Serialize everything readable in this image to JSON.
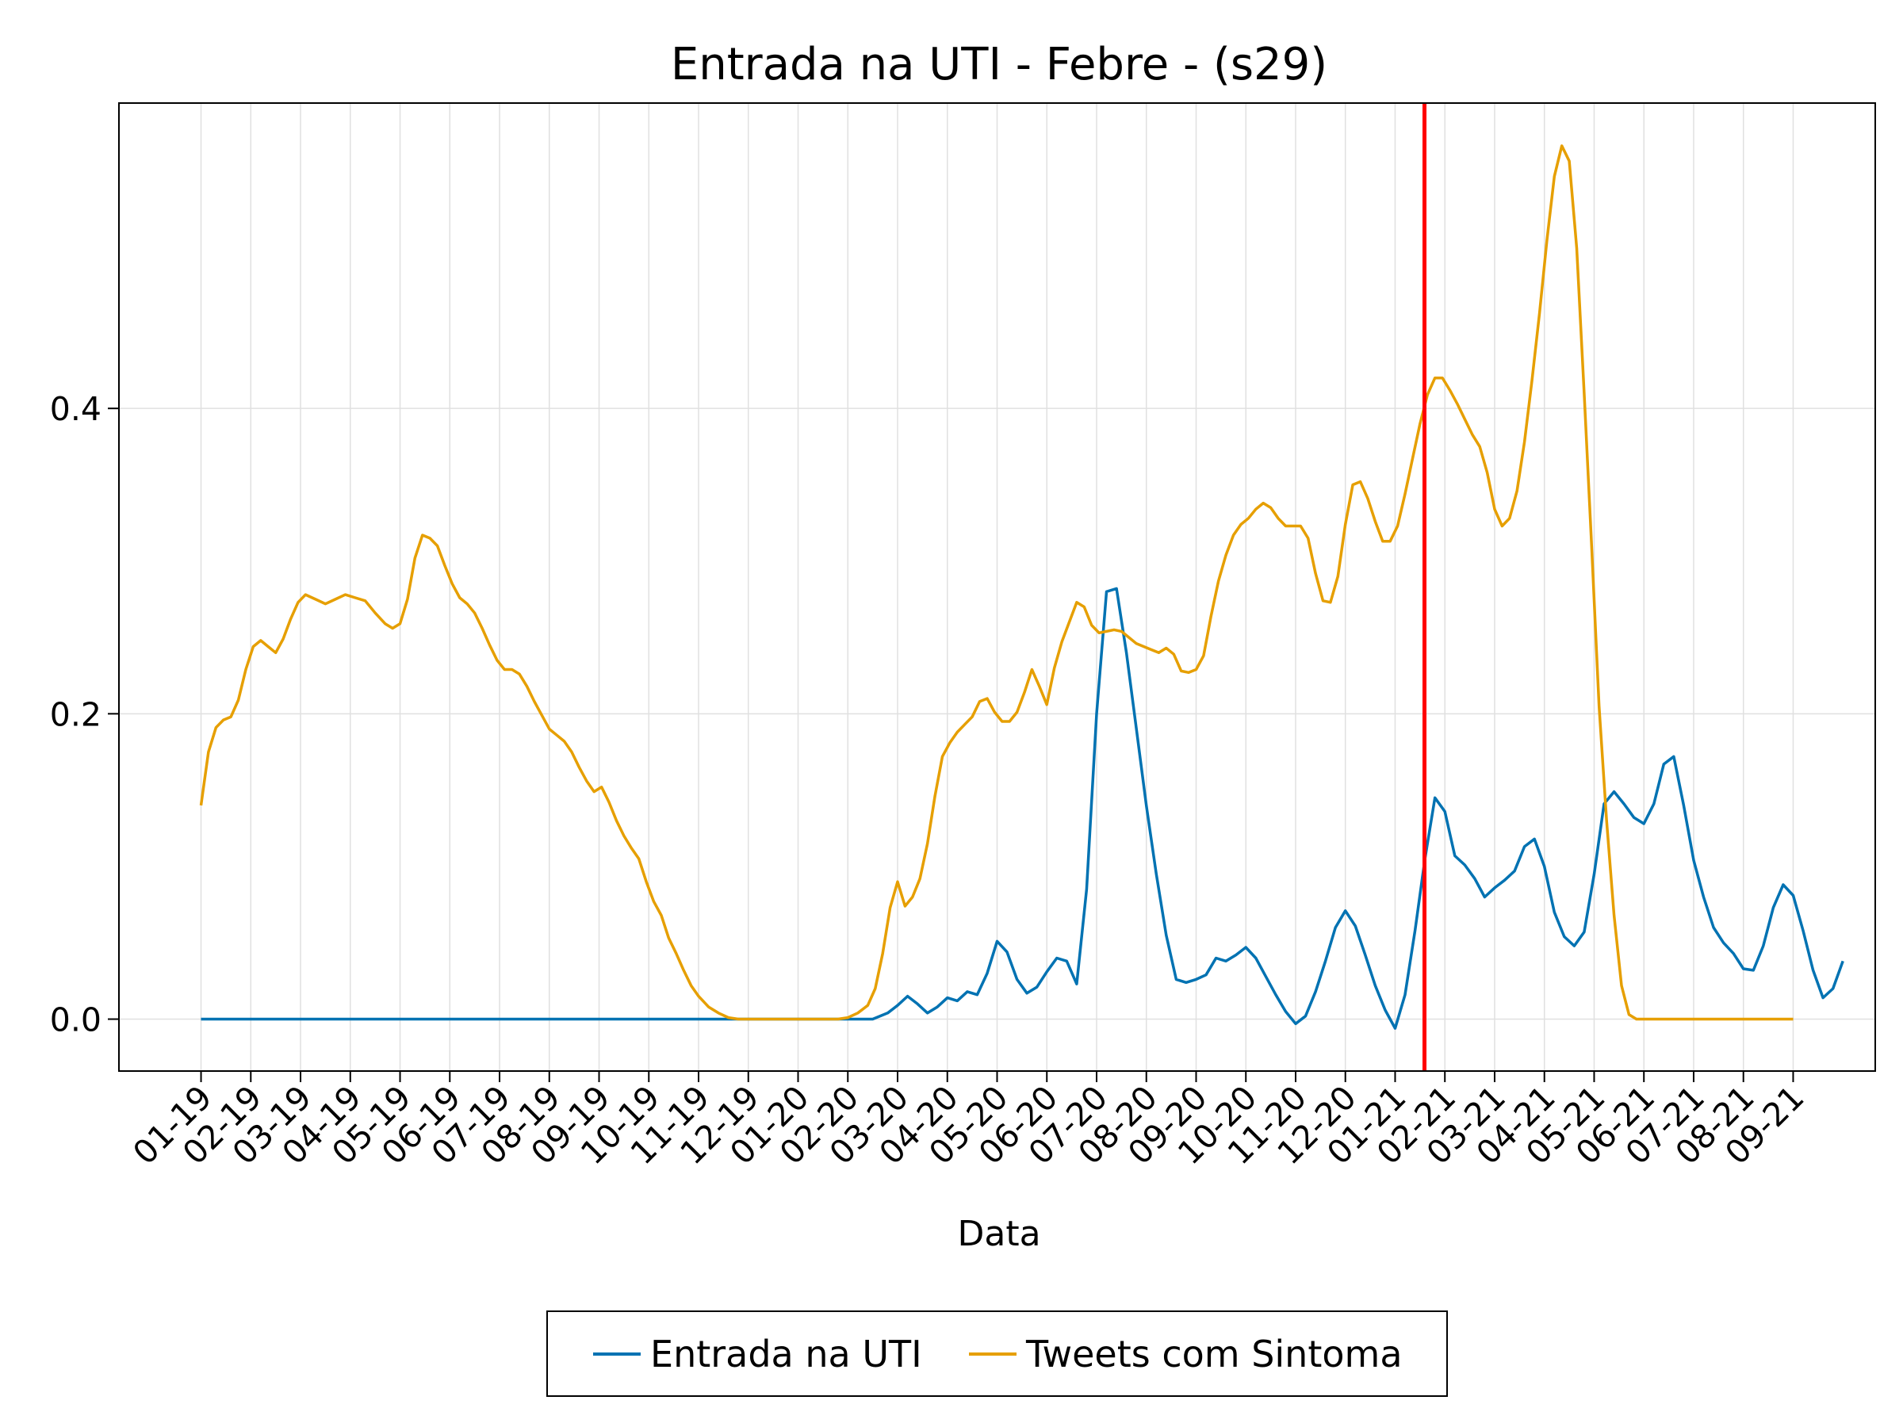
{
  "chart_data": {
    "type": "line",
    "title": "Entrada na UTI - Febre - (s29)",
    "xlabel": "Data",
    "ylabel": "",
    "x_ticks": [
      "01-19",
      "02-19",
      "03-19",
      "04-19",
      "05-19",
      "06-19",
      "07-19",
      "08-19",
      "09-19",
      "10-19",
      "11-19",
      "12-19",
      "01-20",
      "02-20",
      "03-20",
      "04-20",
      "05-20",
      "06-20",
      "07-20",
      "08-20",
      "09-20",
      "10-20",
      "11-20",
      "12-20",
      "01-21",
      "02-21",
      "03-21",
      "04-21",
      "05-21",
      "06-21",
      "07-21",
      "08-21",
      "09-21"
    ],
    "y_ticks": [
      "0.0",
      "0.2",
      "0.4"
    ],
    "ylim": [
      -0.034,
      0.6
    ],
    "xlim": [
      -1.65,
      33.65
    ],
    "grid": true,
    "legend_position": "bottom",
    "vline": {
      "x": 24.59,
      "color": "#ff0000"
    },
    "series": [
      {
        "name": "Entrada na UTI",
        "color": "#0072b2",
        "points": [
          [
            0,
            0
          ],
          [
            1,
            0
          ],
          [
            2,
            0
          ],
          [
            3,
            0
          ],
          [
            4,
            0
          ],
          [
            5,
            0
          ],
          [
            6,
            0
          ],
          [
            7,
            0
          ],
          [
            8,
            0
          ],
          [
            9,
            0
          ],
          [
            10,
            0
          ],
          [
            11,
            0
          ],
          [
            12,
            0
          ],
          [
            13,
            0
          ],
          [
            13.5,
            0
          ],
          [
            13.8,
            0.004
          ],
          [
            14.0,
            0.009
          ],
          [
            14.2,
            0.015
          ],
          [
            14.4,
            0.01
          ],
          [
            14.6,
            0.004
          ],
          [
            14.8,
            0.008
          ],
          [
            15.0,
            0.014
          ],
          [
            15.2,
            0.012
          ],
          [
            15.4,
            0.018
          ],
          [
            15.6,
            0.016
          ],
          [
            15.8,
            0.03
          ],
          [
            16.0,
            0.051
          ],
          [
            16.2,
            0.044
          ],
          [
            16.4,
            0.026
          ],
          [
            16.6,
            0.017
          ],
          [
            16.8,
            0.021
          ],
          [
            17.0,
            0.031
          ],
          [
            17.2,
            0.04
          ],
          [
            17.4,
            0.038
          ],
          [
            17.6,
            0.023
          ],
          [
            17.8,
            0.085
          ],
          [
            18.0,
            0.2
          ],
          [
            18.2,
            0.28
          ],
          [
            18.4,
            0.282
          ],
          [
            18.6,
            0.24
          ],
          [
            18.8,
            0.19
          ],
          [
            19.0,
            0.14
          ],
          [
            19.2,
            0.095
          ],
          [
            19.4,
            0.055
          ],
          [
            19.6,
            0.026
          ],
          [
            19.8,
            0.024
          ],
          [
            20.0,
            0.026
          ],
          [
            20.2,
            0.029
          ],
          [
            20.4,
            0.04
          ],
          [
            20.6,
            0.038
          ],
          [
            20.8,
            0.042
          ],
          [
            21.0,
            0.047
          ],
          [
            21.2,
            0.04
          ],
          [
            21.4,
            0.028
          ],
          [
            21.6,
            0.016
          ],
          [
            21.8,
            0.005
          ],
          [
            22.0,
            -0.003
          ],
          [
            22.2,
            0.002
          ],
          [
            22.4,
            0.018
          ],
          [
            22.6,
            0.038
          ],
          [
            22.8,
            0.06
          ],
          [
            23.0,
            0.071
          ],
          [
            23.2,
            0.061
          ],
          [
            23.4,
            0.042
          ],
          [
            23.6,
            0.022
          ],
          [
            23.8,
            0.006
          ],
          [
            24.0,
            -0.006
          ],
          [
            24.2,
            0.016
          ],
          [
            24.4,
            0.058
          ],
          [
            24.6,
            0.105
          ],
          [
            24.8,
            0.145
          ],
          [
            25.0,
            0.136
          ],
          [
            25.2,
            0.107
          ],
          [
            25.4,
            0.101
          ],
          [
            25.6,
            0.092
          ],
          [
            25.8,
            0.08
          ],
          [
            26.0,
            0.086
          ],
          [
            26.2,
            0.091
          ],
          [
            26.4,
            0.097
          ],
          [
            26.6,
            0.113
          ],
          [
            26.8,
            0.118
          ],
          [
            27.0,
            0.1
          ],
          [
            27.2,
            0.07
          ],
          [
            27.4,
            0.054
          ],
          [
            27.6,
            0.048
          ],
          [
            27.8,
            0.057
          ],
          [
            28.0,
            0.095
          ],
          [
            28.2,
            0.141
          ],
          [
            28.4,
            0.149
          ],
          [
            28.6,
            0.141
          ],
          [
            28.8,
            0.132
          ],
          [
            29.0,
            0.128
          ],
          [
            29.2,
            0.141
          ],
          [
            29.4,
            0.167
          ],
          [
            29.6,
            0.172
          ],
          [
            29.8,
            0.14
          ],
          [
            30.0,
            0.104
          ],
          [
            30.2,
            0.08
          ],
          [
            30.4,
            0.06
          ],
          [
            30.6,
            0.05
          ],
          [
            30.8,
            0.043
          ],
          [
            31.0,
            0.033
          ],
          [
            31.2,
            0.032
          ],
          [
            31.4,
            0.048
          ],
          [
            31.6,
            0.073
          ],
          [
            31.8,
            0.088
          ],
          [
            32.0,
            0.081
          ],
          [
            32.2,
            0.058
          ],
          [
            32.4,
            0.032
          ],
          [
            32.6,
            0.014
          ],
          [
            32.8,
            0.02
          ],
          [
            33.0,
            0.038
          ]
        ]
      },
      {
        "name": "Tweets com Sintoma",
        "color": "#e69f00",
        "points": [
          [
            0,
            0.14
          ],
          [
            0.15,
            0.175
          ],
          [
            0.3,
            0.191
          ],
          [
            0.45,
            0.196
          ],
          [
            0.6,
            0.198
          ],
          [
            0.75,
            0.209
          ],
          [
            0.9,
            0.229
          ],
          [
            1.05,
            0.244
          ],
          [
            1.2,
            0.248
          ],
          [
            1.35,
            0.244
          ],
          [
            1.5,
            0.24
          ],
          [
            1.65,
            0.249
          ],
          [
            1.8,
            0.262
          ],
          [
            1.95,
            0.273
          ],
          [
            2.1,
            0.278
          ],
          [
            2.3,
            0.275
          ],
          [
            2.5,
            0.272
          ],
          [
            2.7,
            0.275
          ],
          [
            2.9,
            0.278
          ],
          [
            3.1,
            0.276
          ],
          [
            3.3,
            0.274
          ],
          [
            3.5,
            0.266
          ],
          [
            3.7,
            0.259
          ],
          [
            3.85,
            0.256
          ],
          [
            4.0,
            0.259
          ],
          [
            4.15,
            0.275
          ],
          [
            4.3,
            0.302
          ],
          [
            4.45,
            0.317
          ],
          [
            4.6,
            0.315
          ],
          [
            4.75,
            0.31
          ],
          [
            4.9,
            0.297
          ],
          [
            5.05,
            0.285
          ],
          [
            5.2,
            0.276
          ],
          [
            5.35,
            0.272
          ],
          [
            5.5,
            0.266
          ],
          [
            5.65,
            0.256
          ],
          [
            5.8,
            0.245
          ],
          [
            5.95,
            0.235
          ],
          [
            6.1,
            0.229
          ],
          [
            6.25,
            0.229
          ],
          [
            6.4,
            0.226
          ],
          [
            6.55,
            0.218
          ],
          [
            6.7,
            0.208
          ],
          [
            6.85,
            0.199
          ],
          [
            7.0,
            0.19
          ],
          [
            7.15,
            0.186
          ],
          [
            7.3,
            0.182
          ],
          [
            7.45,
            0.175
          ],
          [
            7.6,
            0.165
          ],
          [
            7.75,
            0.156
          ],
          [
            7.9,
            0.149
          ],
          [
            8.05,
            0.152
          ],
          [
            8.2,
            0.142
          ],
          [
            8.35,
            0.13
          ],
          [
            8.5,
            0.12
          ],
          [
            8.65,
            0.112
          ],
          [
            8.8,
            0.105
          ],
          [
            8.95,
            0.09
          ],
          [
            9.1,
            0.077
          ],
          [
            9.25,
            0.068
          ],
          [
            9.4,
            0.053
          ],
          [
            9.55,
            0.043
          ],
          [
            9.7,
            0.032
          ],
          [
            9.85,
            0.022
          ],
          [
            10.0,
            0.015
          ],
          [
            10.2,
            0.008
          ],
          [
            10.4,
            0.004
          ],
          [
            10.6,
            0.001
          ],
          [
            10.8,
            0.0
          ],
          [
            11.2,
            0.0
          ],
          [
            11.6,
            0.0
          ],
          [
            12.0,
            0.0
          ],
          [
            12.4,
            0.0
          ],
          [
            12.8,
            0.0
          ],
          [
            13.0,
            0.001
          ],
          [
            13.2,
            0.004
          ],
          [
            13.4,
            0.009
          ],
          [
            13.55,
            0.02
          ],
          [
            13.7,
            0.043
          ],
          [
            13.85,
            0.073
          ],
          [
            14.0,
            0.09
          ],
          [
            14.15,
            0.074
          ],
          [
            14.3,
            0.08
          ],
          [
            14.45,
            0.092
          ],
          [
            14.6,
            0.115
          ],
          [
            14.75,
            0.146
          ],
          [
            14.9,
            0.172
          ],
          [
            15.05,
            0.181
          ],
          [
            15.2,
            0.188
          ],
          [
            15.35,
            0.193
          ],
          [
            15.5,
            0.198
          ],
          [
            15.65,
            0.208
          ],
          [
            15.8,
            0.21
          ],
          [
            15.95,
            0.201
          ],
          [
            16.1,
            0.195
          ],
          [
            16.25,
            0.195
          ],
          [
            16.4,
            0.201
          ],
          [
            16.55,
            0.214
          ],
          [
            16.7,
            0.229
          ],
          [
            16.85,
            0.218
          ],
          [
            17.0,
            0.206
          ],
          [
            17.15,
            0.23
          ],
          [
            17.3,
            0.247
          ],
          [
            17.45,
            0.26
          ],
          [
            17.6,
            0.273
          ],
          [
            17.75,
            0.27
          ],
          [
            17.9,
            0.258
          ],
          [
            18.05,
            0.253
          ],
          [
            18.2,
            0.254
          ],
          [
            18.35,
            0.255
          ],
          [
            18.5,
            0.254
          ],
          [
            18.65,
            0.25
          ],
          [
            18.8,
            0.246
          ],
          [
            18.95,
            0.244
          ],
          [
            19.1,
            0.242
          ],
          [
            19.25,
            0.24
          ],
          [
            19.4,
            0.243
          ],
          [
            19.55,
            0.239
          ],
          [
            19.7,
            0.228
          ],
          [
            19.85,
            0.227
          ],
          [
            20.0,
            0.229
          ],
          [
            20.15,
            0.238
          ],
          [
            20.3,
            0.264
          ],
          [
            20.45,
            0.287
          ],
          [
            20.6,
            0.304
          ],
          [
            20.75,
            0.317
          ],
          [
            20.9,
            0.324
          ],
          [
            21.05,
            0.328
          ],
          [
            21.2,
            0.334
          ],
          [
            21.35,
            0.338
          ],
          [
            21.5,
            0.335
          ],
          [
            21.65,
            0.328
          ],
          [
            21.8,
            0.323
          ],
          [
            21.95,
            0.323
          ],
          [
            22.1,
            0.323
          ],
          [
            22.25,
            0.315
          ],
          [
            22.4,
            0.292
          ],
          [
            22.55,
            0.274
          ],
          [
            22.7,
            0.273
          ],
          [
            22.85,
            0.29
          ],
          [
            23.0,
            0.324
          ],
          [
            23.15,
            0.35
          ],
          [
            23.3,
            0.352
          ],
          [
            23.45,
            0.341
          ],
          [
            23.6,
            0.326
          ],
          [
            23.75,
            0.313
          ],
          [
            23.9,
            0.313
          ],
          [
            24.05,
            0.323
          ],
          [
            24.2,
            0.344
          ],
          [
            24.35,
            0.367
          ],
          [
            24.5,
            0.39
          ],
          [
            24.65,
            0.409
          ],
          [
            24.8,
            0.42
          ],
          [
            24.95,
            0.42
          ],
          [
            25.1,
            0.412
          ],
          [
            25.25,
            0.403
          ],
          [
            25.4,
            0.393
          ],
          [
            25.55,
            0.383
          ],
          [
            25.7,
            0.375
          ],
          [
            25.85,
            0.358
          ],
          [
            26.0,
            0.334
          ],
          [
            26.15,
            0.323
          ],
          [
            26.3,
            0.328
          ],
          [
            26.45,
            0.346
          ],
          [
            26.6,
            0.378
          ],
          [
            26.75,
            0.418
          ],
          [
            26.9,
            0.462
          ],
          [
            27.05,
            0.51
          ],
          [
            27.2,
            0.552
          ],
          [
            27.35,
            0.572
          ],
          [
            27.5,
            0.562
          ],
          [
            27.65,
            0.505
          ],
          [
            27.8,
            0.41
          ],
          [
            27.95,
            0.31
          ],
          [
            28.1,
            0.205
          ],
          [
            28.25,
            0.13
          ],
          [
            28.4,
            0.068
          ],
          [
            28.55,
            0.022
          ],
          [
            28.7,
            0.003
          ],
          [
            28.85,
            0.0
          ],
          [
            29.2,
            0.0
          ],
          [
            29.6,
            0.0
          ],
          [
            30.0,
            0.0
          ],
          [
            30.4,
            0.0
          ],
          [
            30.8,
            0.0
          ],
          [
            31.2,
            0.0
          ],
          [
            31.6,
            0.0
          ],
          [
            32.0,
            0.0
          ]
        ]
      }
    ]
  }
}
